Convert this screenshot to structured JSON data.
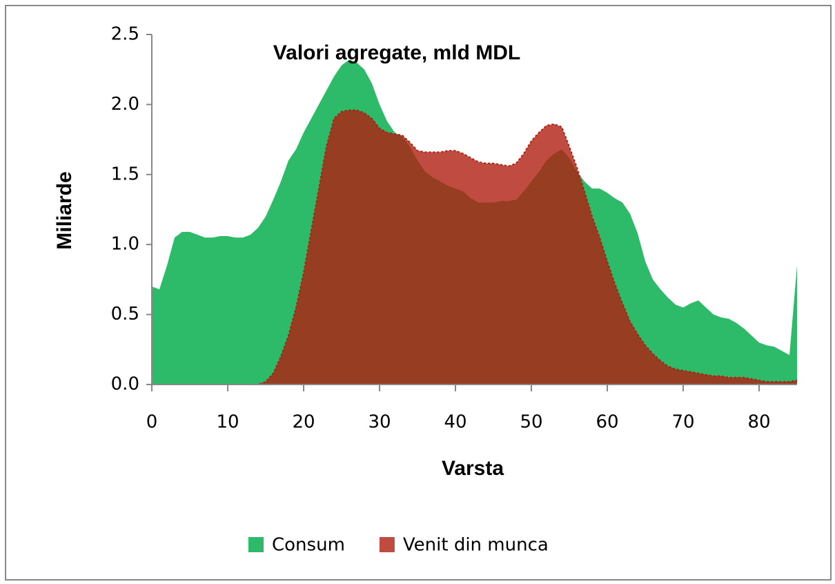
{
  "chart_data": {
    "type": "area",
    "title": "Valori agregate, mld MDL",
    "x_label": "Varsta",
    "y_label": "Miliarde",
    "x": [
      0,
      1,
      2,
      3,
      4,
      5,
      6,
      7,
      8,
      9,
      10,
      11,
      12,
      13,
      14,
      15,
      16,
      17,
      18,
      19,
      20,
      21,
      22,
      23,
      24,
      25,
      26,
      27,
      28,
      29,
      30,
      31,
      32,
      33,
      34,
      35,
      36,
      37,
      38,
      39,
      40,
      41,
      42,
      43,
      44,
      45,
      46,
      47,
      48,
      49,
      50,
      51,
      52,
      53,
      54,
      55,
      56,
      57,
      58,
      59,
      60,
      61,
      62,
      63,
      64,
      65,
      66,
      67,
      68,
      69,
      70,
      71,
      72,
      73,
      74,
      75,
      76,
      77,
      78,
      79,
      80,
      81,
      82,
      83,
      84,
      85
    ],
    "series": [
      {
        "name": "Consum",
        "color": "#2dbb6a",
        "opacity": 1,
        "values": [
          0.7,
          0.68,
          0.85,
          1.05,
          1.09,
          1.09,
          1.07,
          1.05,
          1.05,
          1.06,
          1.06,
          1.05,
          1.05,
          1.07,
          1.12,
          1.2,
          1.32,
          1.45,
          1.6,
          1.68,
          1.8,
          1.9,
          2.0,
          2.1,
          2.2,
          2.28,
          2.32,
          2.3,
          2.25,
          2.15,
          2.0,
          1.88,
          1.8,
          1.77,
          1.7,
          1.6,
          1.52,
          1.48,
          1.45,
          1.42,
          1.4,
          1.38,
          1.33,
          1.3,
          1.3,
          1.3,
          1.31,
          1.31,
          1.32,
          1.38,
          1.45,
          1.52,
          1.6,
          1.65,
          1.68,
          1.62,
          1.52,
          1.45,
          1.4,
          1.4,
          1.37,
          1.33,
          1.3,
          1.22,
          1.08,
          0.88,
          0.75,
          0.68,
          0.62,
          0.57,
          0.55,
          0.58,
          0.6,
          0.55,
          0.5,
          0.48,
          0.47,
          0.44,
          0.4,
          0.35,
          0.3,
          0.28,
          0.27,
          0.24,
          0.21,
          0.85
        ]
      },
      {
        "name": "Venit din munca",
        "color": "#b01e10",
        "opacity": 0.8,
        "values": [
          0,
          0,
          0,
          0,
          0,
          0,
          0,
          0,
          0,
          0,
          0,
          0,
          0,
          0,
          0,
          0.02,
          0.08,
          0.2,
          0.35,
          0.55,
          0.8,
          1.1,
          1.4,
          1.7,
          1.9,
          1.95,
          1.96,
          1.96,
          1.94,
          1.9,
          1.83,
          1.8,
          1.79,
          1.78,
          1.73,
          1.67,
          1.66,
          1.66,
          1.66,
          1.67,
          1.67,
          1.65,
          1.62,
          1.59,
          1.58,
          1.58,
          1.57,
          1.56,
          1.58,
          1.65,
          1.74,
          1.8,
          1.85,
          1.86,
          1.84,
          1.7,
          1.55,
          1.38,
          1.2,
          1.05,
          0.88,
          0.72,
          0.58,
          0.45,
          0.36,
          0.28,
          0.22,
          0.17,
          0.13,
          0.11,
          0.1,
          0.09,
          0.08,
          0.07,
          0.06,
          0.06,
          0.05,
          0.05,
          0.05,
          0.04,
          0.03,
          0.02,
          0.02,
          0.02,
          0.02,
          0.03
        ]
      }
    ],
    "xlim": [
      0,
      85
    ],
    "xticks": [
      0,
      10,
      20,
      30,
      40,
      50,
      60,
      70,
      80
    ],
    "ylim": [
      0,
      2.5
    ],
    "yticks": [
      {
        "value": 0,
        "label": "0.0"
      },
      0.5,
      {
        "value": 1,
        "label": "1.0"
      },
      1.5,
      {
        "value": 2,
        "label": "2.0"
      },
      2.5
    ],
    "legend": "bottom"
  }
}
